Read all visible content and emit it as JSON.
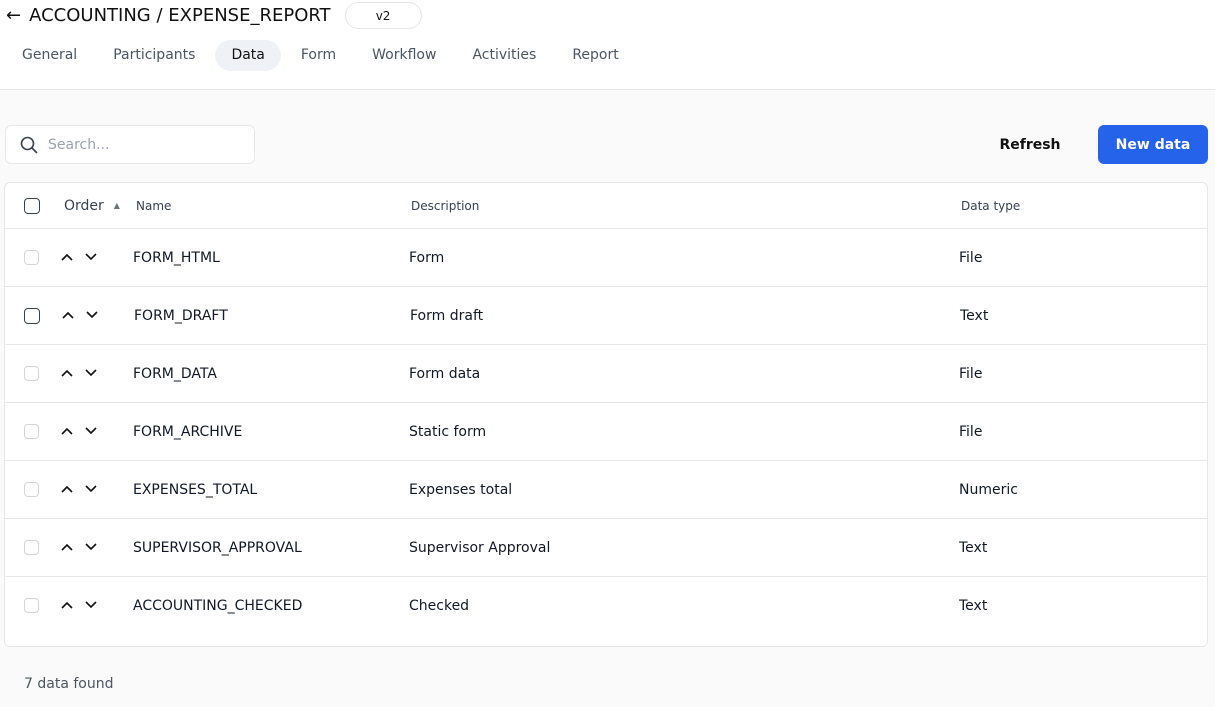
{
  "header": {
    "breadcrumb": "ACCOUNTING / EXPENSE_REPORT",
    "version": "v2"
  },
  "tabs": [
    {
      "label": "General"
    },
    {
      "label": "Participants"
    },
    {
      "label": "Data",
      "active": true
    },
    {
      "label": "Form"
    },
    {
      "label": "Workflow"
    },
    {
      "label": "Activities"
    },
    {
      "label": "Report"
    }
  ],
  "toolbar": {
    "search_placeholder": "Search...",
    "refresh_label": "Refresh",
    "new_label": "New data",
    "accent": "#2563eb"
  },
  "table": {
    "columns": {
      "order": "Order",
      "name": "Name",
      "description": "Description",
      "type": "Data type"
    },
    "rows": [
      {
        "name": "FORM_HTML",
        "description": "Form",
        "type": "File"
      },
      {
        "name": "FORM_DRAFT",
        "description": "Form draft",
        "type": "Text"
      },
      {
        "name": "FORM_DATA",
        "description": "Form data",
        "type": "File"
      },
      {
        "name": "FORM_ARCHIVE",
        "description": "Static form",
        "type": "File"
      },
      {
        "name": "EXPENSES_TOTAL",
        "description": "Expenses total",
        "type": "Numeric"
      },
      {
        "name": "SUPERVISOR_APPROVAL",
        "description": "Supervisor Approval",
        "type": "Text"
      },
      {
        "name": "ACCOUNTING_CHECKED",
        "description": "Checked",
        "type": "Text"
      }
    ]
  },
  "footer": {
    "count_text": "7 data found"
  }
}
